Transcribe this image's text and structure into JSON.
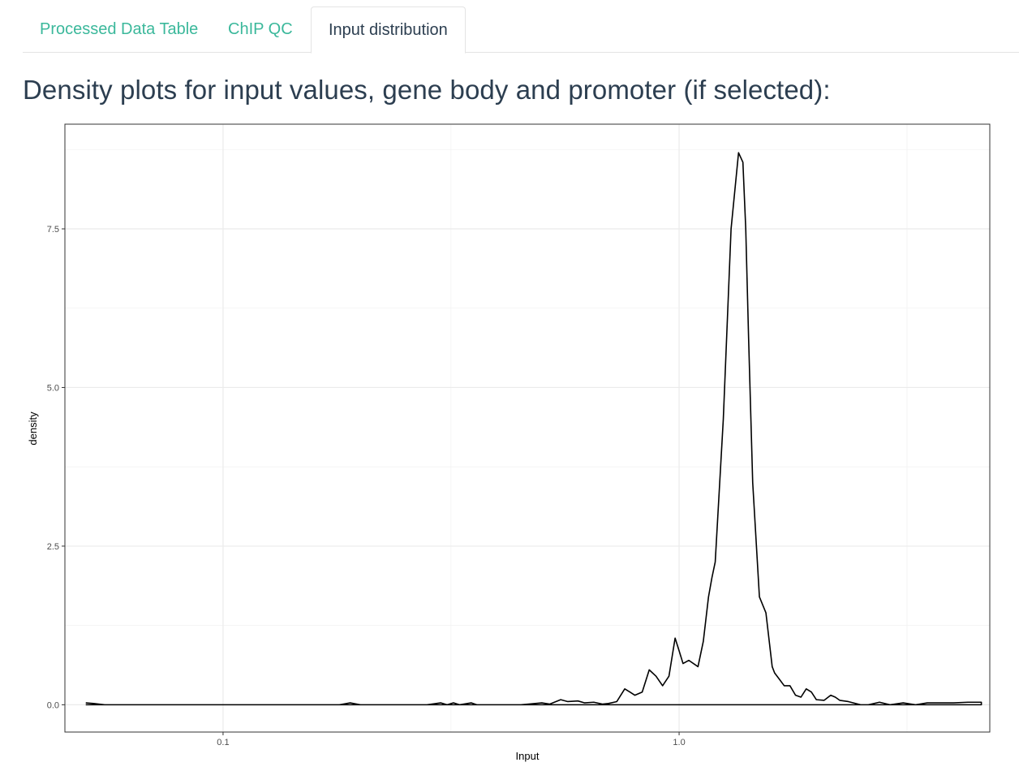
{
  "tabs": [
    {
      "label": "Processed Data Table",
      "active": false
    },
    {
      "label": "ChIP QC",
      "active": false
    },
    {
      "label": "Input distribution",
      "active": true
    }
  ],
  "page": {
    "title": "Density plots for input values, gene body and promoter (if selected):"
  },
  "colors": {
    "link": "#3bb89b",
    "text": "#2c3e50",
    "line": "#000000",
    "grid": "#ebebeb"
  },
  "chart_data": {
    "type": "line",
    "title": "",
    "xlabel": "Input",
    "ylabel": "density",
    "x_scale": "log10",
    "xlim": [
      0.045,
      4.8
    ],
    "ylim": [
      -0.43,
      9.15
    ],
    "grid": true,
    "x_ticks": [
      {
        "value": 0.1,
        "label": "0.1"
      },
      {
        "value": 1.0,
        "label": "1.0"
      }
    ],
    "x_minor_ticks": [
      0.316,
      3.16
    ],
    "y_ticks": [
      {
        "value": 0,
        "label": "0.0"
      },
      {
        "value": 2.5,
        "label": "2.5"
      },
      {
        "value": 5,
        "label": "5.0"
      },
      {
        "value": 7.5,
        "label": "7.5"
      }
    ],
    "y_minor_ticks": [
      1.25,
      3.75,
      6.25,
      8.75
    ],
    "series": [
      {
        "x": [
          0.05,
          0.052,
          0.055,
          0.06,
          0.08,
          0.1,
          0.15,
          0.18,
          0.19,
          0.2,
          0.22,
          0.28,
          0.3,
          0.31,
          0.32,
          0.33,
          0.35,
          0.36,
          0.38,
          0.45,
          0.5,
          0.52,
          0.55,
          0.57,
          0.6,
          0.62,
          0.65,
          0.68,
          0.7,
          0.73,
          0.76,
          0.78,
          0.8,
          0.83,
          0.86,
          0.89,
          0.92,
          0.95,
          0.98,
          1.0,
          1.02,
          1.05,
          1.1,
          1.13,
          1.16,
          1.18,
          1.2,
          1.25,
          1.3,
          1.35,
          1.38,
          1.4,
          1.42,
          1.45,
          1.5,
          1.55,
          1.6,
          1.62,
          1.66,
          1.7,
          1.75,
          1.8,
          1.85,
          1.9,
          1.95,
          2.0,
          2.08,
          2.15,
          2.2,
          2.25,
          2.35,
          2.5,
          2.6,
          2.75,
          2.9,
          3.1,
          3.3,
          3.5,
          3.8,
          4.0,
          4.3,
          4.5,
          4.6,
          4.6,
          4.4,
          4.0,
          3.0,
          2.0,
          1.0,
          0.5,
          0.2,
          0.1,
          0.05
        ],
        "y": [
          0.03,
          0.02,
          0.0,
          0.0,
          0.0,
          0.0,
          0.0,
          0.0,
          0.03,
          0.0,
          0.0,
          0.0,
          0.03,
          0.0,
          0.03,
          0.0,
          0.03,
          0.0,
          0.0,
          0.0,
          0.03,
          0.01,
          0.08,
          0.05,
          0.06,
          0.03,
          0.04,
          0.01,
          0.02,
          0.05,
          0.25,
          0.2,
          0.15,
          0.2,
          0.55,
          0.45,
          0.3,
          0.45,
          1.05,
          0.85,
          0.65,
          0.7,
          0.6,
          1.0,
          1.7,
          2.0,
          2.25,
          4.5,
          7.5,
          8.7,
          8.55,
          7.5,
          5.8,
          3.5,
          1.7,
          1.45,
          0.6,
          0.5,
          0.4,
          0.3,
          0.3,
          0.15,
          0.12,
          0.25,
          0.2,
          0.08,
          0.07,
          0.15,
          0.12,
          0.07,
          0.05,
          0.0,
          0.0,
          0.04,
          0.0,
          0.03,
          0.0,
          0.03,
          0.03,
          0.03,
          0.04,
          0.04,
          0.04,
          0.0,
          0.0,
          0.0,
          0.0,
          0.0,
          0.0,
          0.0,
          0.0,
          0.0,
          0.0
        ]
      }
    ]
  }
}
